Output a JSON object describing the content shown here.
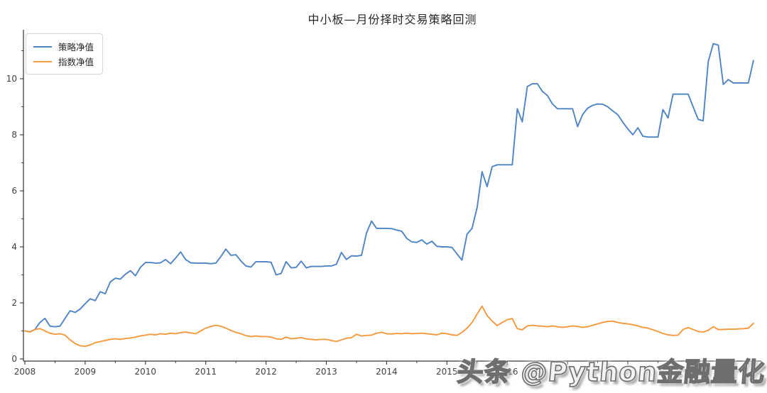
{
  "title": "中小板—月份择时交易策略回测",
  "watermark": {
    "text": "头条 @Python金融量化"
  },
  "axis": {
    "x_tick_labels": [
      "2008",
      "2009",
      "2010",
      "2011",
      "2012",
      "2013",
      "2014",
      "2015",
      "2016"
    ],
    "y_tick_labels": [
      "0",
      "2",
      "4",
      "6",
      "8",
      "10"
    ]
  },
  "chart_data": {
    "type": "line",
    "title": "中小板—月份择时交易策略回测",
    "xlabel": "",
    "ylabel": "",
    "x_start": "2008-01",
    "x_freq": "monthly",
    "x_tick_labels": [
      "2008",
      "2009",
      "2010",
      "2011",
      "2012",
      "2013",
      "2014",
      "2015",
      "2016"
    ],
    "y_ticks": [
      0,
      2,
      4,
      6,
      8,
      10
    ],
    "ylim": [
      -0.1,
      11.75
    ],
    "grid": false,
    "legend_position": "upper left",
    "series": [
      {
        "name": "策略净值",
        "color": "#4e84c4",
        "values": [
          1.0,
          0.97,
          1.05,
          1.3,
          1.45,
          1.17,
          1.15,
          1.17,
          1.45,
          1.72,
          1.66,
          1.78,
          1.97,
          2.15,
          2.08,
          2.4,
          2.33,
          2.75,
          2.88,
          2.85,
          3.02,
          3.15,
          2.97,
          3.27,
          3.44,
          3.44,
          3.42,
          3.43,
          3.55,
          3.4,
          3.6,
          3.82,
          3.55,
          3.43,
          3.42,
          3.42,
          3.42,
          3.4,
          3.42,
          3.65,
          3.92,
          3.7,
          3.72,
          3.5,
          3.32,
          3.28,
          3.47,
          3.47,
          3.47,
          3.45,
          3.0,
          3.05,
          3.47,
          3.25,
          3.27,
          3.49,
          3.25,
          3.3,
          3.3,
          3.3,
          3.32,
          3.32,
          3.38,
          3.8,
          3.55,
          3.68,
          3.67,
          3.7,
          4.5,
          4.92,
          4.66,
          4.66,
          4.66,
          4.65,
          4.6,
          4.56,
          4.3,
          4.18,
          4.16,
          4.25,
          4.1,
          4.2,
          4.02,
          4.0,
          4.0,
          3.98,
          3.75,
          3.53,
          4.45,
          4.66,
          5.4,
          6.68,
          6.15,
          6.86,
          6.93,
          6.93,
          6.93,
          6.93,
          8.93,
          8.46,
          9.72,
          9.82,
          9.82,
          9.55,
          9.4,
          9.1,
          8.93,
          8.93,
          8.93,
          8.93,
          8.29,
          8.72,
          8.95,
          9.05,
          9.1,
          9.09,
          9.0,
          8.85,
          8.72,
          8.45,
          8.21,
          8.0,
          8.25,
          7.95,
          7.92,
          7.92,
          7.92,
          8.9,
          8.6,
          9.45,
          9.45,
          9.45,
          9.45,
          9.0,
          8.55,
          8.5,
          10.6,
          11.25,
          11.2,
          9.8,
          9.97,
          9.85,
          9.85,
          9.85,
          9.85,
          10.65
        ]
      },
      {
        "name": "指数净值",
        "color": "#f5993d",
        "values": [
          1.0,
          0.96,
          1.05,
          1.08,
          1.0,
          0.92,
          0.88,
          0.9,
          0.85,
          0.68,
          0.55,
          0.47,
          0.45,
          0.5,
          0.58,
          0.62,
          0.66,
          0.7,
          0.72,
          0.7,
          0.73,
          0.75,
          0.78,
          0.82,
          0.85,
          0.88,
          0.86,
          0.9,
          0.88,
          0.92,
          0.9,
          0.94,
          0.96,
          0.93,
          0.9,
          1.0,
          1.1,
          1.16,
          1.2,
          1.17,
          1.1,
          1.02,
          0.95,
          0.9,
          0.83,
          0.8,
          0.82,
          0.8,
          0.8,
          0.78,
          0.72,
          0.7,
          0.78,
          0.72,
          0.74,
          0.76,
          0.72,
          0.7,
          0.68,
          0.7,
          0.7,
          0.66,
          0.62,
          0.68,
          0.74,
          0.76,
          0.88,
          0.82,
          0.84,
          0.85,
          0.92,
          0.95,
          0.9,
          0.89,
          0.91,
          0.9,
          0.92,
          0.9,
          0.91,
          0.92,
          0.9,
          0.88,
          0.86,
          0.92,
          0.9,
          0.86,
          0.84,
          0.95,
          1.1,
          1.3,
          1.6,
          1.88,
          1.55,
          1.35,
          1.19,
          1.3,
          1.4,
          1.44,
          1.08,
          1.04,
          1.18,
          1.2,
          1.18,
          1.17,
          1.15,
          1.18,
          1.15,
          1.13,
          1.15,
          1.18,
          1.16,
          1.13,
          1.15,
          1.2,
          1.25,
          1.3,
          1.34,
          1.35,
          1.3,
          1.27,
          1.25,
          1.22,
          1.18,
          1.13,
          1.1,
          1.04,
          0.98,
          0.91,
          0.86,
          0.84,
          0.85,
          1.05,
          1.12,
          1.05,
          0.98,
          0.96,
          1.02,
          1.15,
          1.05,
          1.05,
          1.06,
          1.06,
          1.07,
          1.08,
          1.1,
          1.27
        ]
      }
    ]
  }
}
